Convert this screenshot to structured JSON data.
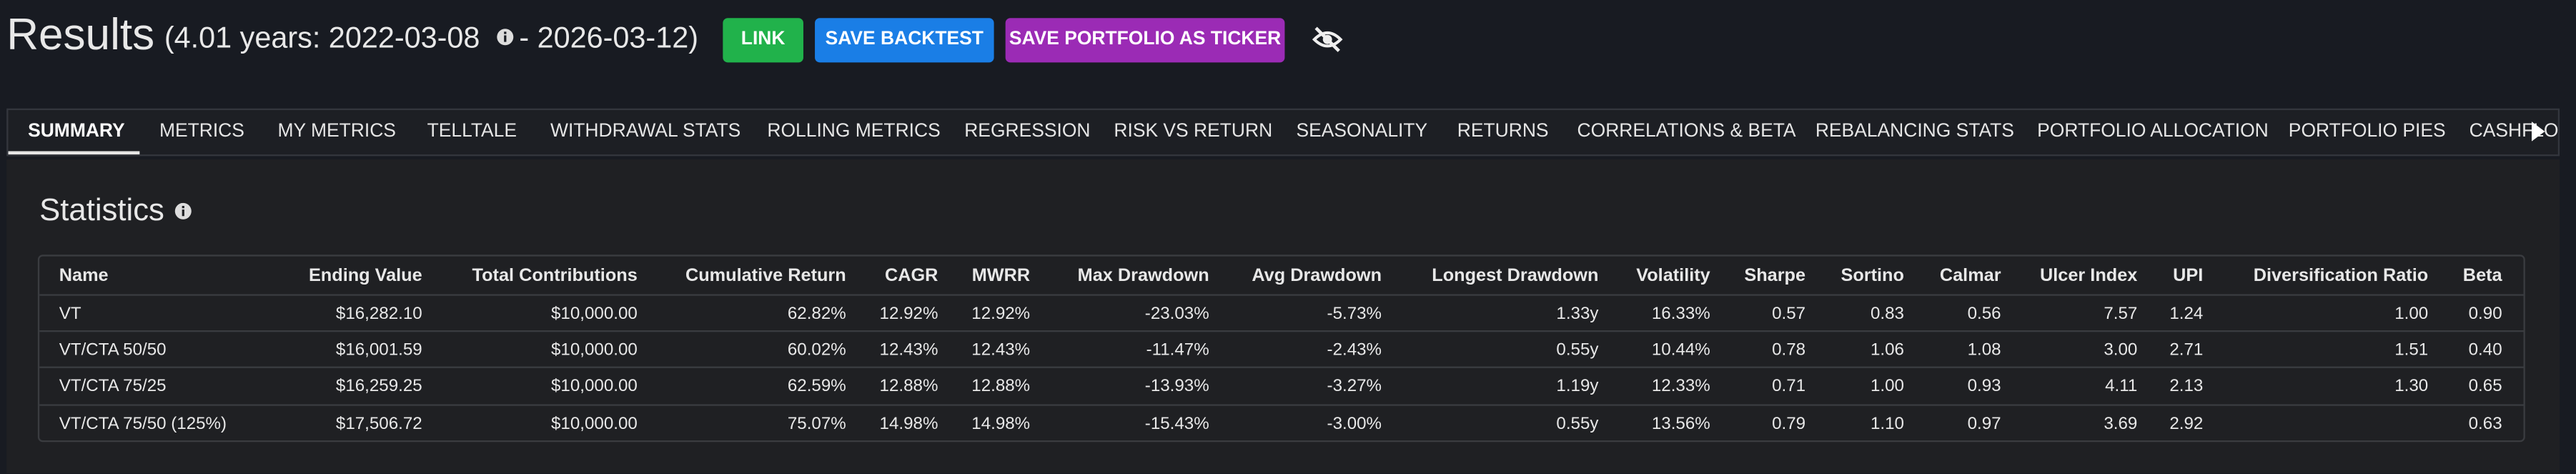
{
  "header": {
    "title": "Results",
    "range_start": "(4.01 years: 2022-03-08",
    "range_end": " - 2026-03-12)"
  },
  "buttons": [
    "LINK",
    "SAVE BACKTEST",
    "SAVE PORTFOLIO AS TICKER"
  ],
  "tabs": [
    "SUMMARY",
    "METRICS",
    "MY METRICS",
    "TELLTALE",
    "WITHDRAWAL STATS",
    "ROLLING METRICS",
    "REGRESSION",
    "RISK VS RETURN",
    "SEASONALITY",
    "RETURNS",
    "CORRELATIONS & BETA",
    "REBALANCING STATS",
    "PORTFOLIO ALLOCATION",
    "PORTFOLIO PIES",
    "CASHFLOWS"
  ],
  "section": {
    "title": "Statistics"
  },
  "table": {
    "columns": [
      "Name",
      "Ending Value",
      "Total Contributions",
      "Cumulative Return",
      "CAGR",
      "MWRR",
      "Max Drawdown",
      "Avg Drawdown",
      "Longest Drawdown",
      "Volatility",
      "Sharpe",
      "Sortino",
      "Calmar",
      "Ulcer Index",
      "UPI",
      "Diversification Ratio",
      "Beta"
    ],
    "rows": [
      [
        "VT",
        "$16,282.10",
        "$10,000.00",
        "62.82%",
        "12.92%",
        "12.92%",
        "-23.03%",
        "-5.73%",
        "1.33y",
        "16.33%",
        "0.57",
        "0.83",
        "0.56",
        "7.57",
        "1.24",
        "1.00",
        "0.90"
      ],
      [
        "VT/CTA 50/50",
        "$16,001.59",
        "$10,000.00",
        "60.02%",
        "12.43%",
        "12.43%",
        "-11.47%",
        "-2.43%",
        "0.55y",
        "10.44%",
        "0.78",
        "1.06",
        "1.08",
        "3.00",
        "2.71",
        "1.51",
        "0.40"
      ],
      [
        "VT/CTA 75/25",
        "$16,259.25",
        "$10,000.00",
        "62.59%",
        "12.88%",
        "12.88%",
        "-13.93%",
        "-3.27%",
        "1.19y",
        "12.33%",
        "0.71",
        "1.00",
        "0.93",
        "4.11",
        "2.13",
        "1.30",
        "0.65"
      ],
      [
        "VT/CTA 75/50 (125%)",
        "$17,506.72",
        "$10,000.00",
        "75.07%",
        "14.98%",
        "14.98%",
        "-15.43%",
        "-3.00%",
        "0.55y",
        "13.56%",
        "0.79",
        "1.10",
        "0.97",
        "3.69",
        "2.92",
        null,
        "0.63"
      ]
    ]
  }
}
